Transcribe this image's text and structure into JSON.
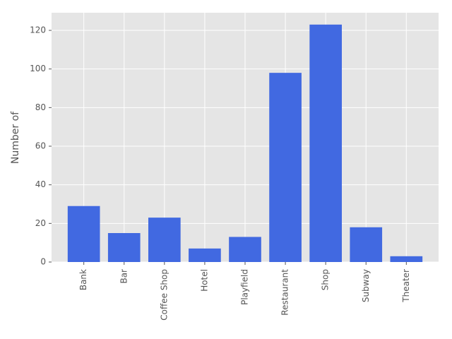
{
  "chart_data": {
    "type": "bar",
    "y_label": "Number of",
    "categories": [
      "Bank",
      "Bar",
      "Coffee Shop",
      "Hotel",
      "Playfield",
      "Restaurant",
      "Shop",
      "Subway",
      "Theater"
    ],
    "values": [
      29,
      15,
      23,
      7,
      13,
      98,
      123,
      18,
      3
    ],
    "color": "#4169e1",
    "ylim": [
      0,
      129.15
    ],
    "yticks": [
      0,
      20,
      40,
      60,
      80,
      100,
      120
    ],
    "grid": true
  }
}
